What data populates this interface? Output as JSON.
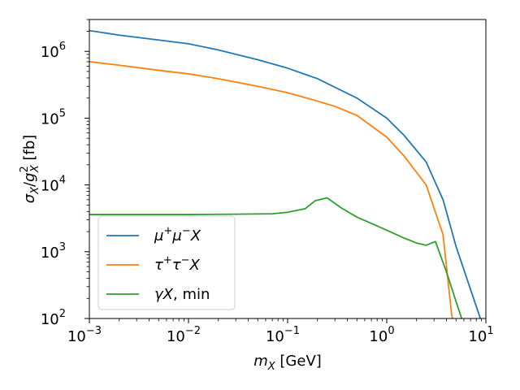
{
  "chart_data": {
    "type": "line",
    "title": "",
    "x_scale": "log",
    "y_scale": "log",
    "xlim": [
      0.001,
      10
    ],
    "ylim": [
      100,
      3000000
    ],
    "xlabel": {
      "main": "m",
      "sub": "X",
      "unit": " [GeV]"
    },
    "ylabel": {
      "sigma": "σ",
      "sigma_sub": "X",
      "slash": "/",
      "g": "g",
      "g_sub": "X",
      "g_sup": "2",
      "unit": " [fb]"
    },
    "x_ticks": [
      {
        "value": 0.001,
        "base": "10",
        "exp": "−3"
      },
      {
        "value": 0.01,
        "base": "10",
        "exp": "−2"
      },
      {
        "value": 0.1,
        "base": "10",
        "exp": "−1"
      },
      {
        "value": 1,
        "base": "10",
        "exp": "0"
      },
      {
        "value": 10,
        "base": "10",
        "exp": "1"
      }
    ],
    "y_ticks": [
      {
        "value": 100,
        "base": "10",
        "exp": "2"
      },
      {
        "value": 1000,
        "base": "10",
        "exp": "3"
      },
      {
        "value": 10000,
        "base": "10",
        "exp": "4"
      },
      {
        "value": 100000,
        "base": "10",
        "exp": "5"
      },
      {
        "value": 1000000,
        "base": "10",
        "exp": "6"
      }
    ],
    "legend_position": "lower-left",
    "series": [
      {
        "name": "μ⁺μ⁻X",
        "legend": [
          {
            "t": "μ"
          },
          {
            "t": "+",
            "sup": true
          },
          {
            "t": "μ"
          },
          {
            "t": "−",
            "sup": true
          },
          {
            "t": "X"
          }
        ],
        "color": "#1f77b4",
        "points": [
          [
            0.001,
            2050000
          ],
          [
            0.002,
            1750000
          ],
          [
            0.005,
            1480000
          ],
          [
            0.01,
            1300000
          ],
          [
            0.02,
            1050000
          ],
          [
            0.05,
            750000
          ],
          [
            0.1,
            560000
          ],
          [
            0.2,
            390000
          ],
          [
            0.3,
            290000
          ],
          [
            0.5,
            200000
          ],
          [
            1.0,
            100000
          ],
          [
            1.5,
            55000
          ],
          [
            2.5,
            22000
          ],
          [
            3.7,
            6000
          ],
          [
            5.0,
            1200
          ],
          [
            8.8,
            100
          ]
        ]
      },
      {
        "name": "τ⁺τ⁻X",
        "legend": [
          {
            "t": "τ"
          },
          {
            "t": "+",
            "sup": true
          },
          {
            "t": "τ"
          },
          {
            "t": "−",
            "sup": true
          },
          {
            "t": "X"
          }
        ],
        "color": "#ff7f0e",
        "points": [
          [
            0.001,
            700000
          ],
          [
            0.002,
            620000
          ],
          [
            0.005,
            520000
          ],
          [
            0.01,
            460000
          ],
          [
            0.02,
            390000
          ],
          [
            0.05,
            300000
          ],
          [
            0.1,
            240000
          ],
          [
            0.2,
            180000
          ],
          [
            0.3,
            150000
          ],
          [
            0.5,
            110000
          ],
          [
            1.0,
            52000
          ],
          [
            1.5,
            27000
          ],
          [
            2.5,
            10000
          ],
          [
            3.7,
            1800
          ],
          [
            4.5,
            120
          ],
          [
            4.6,
            100
          ]
        ]
      },
      {
        "name": "γX, min",
        "legend": [
          {
            "t": "γ"
          },
          {
            "t": "X"
          },
          {
            "t": ", min",
            "roman": true
          }
        ],
        "color": "#2ca02c",
        "points": [
          [
            0.001,
            3600
          ],
          [
            0.003,
            3600
          ],
          [
            0.01,
            3600
          ],
          [
            0.03,
            3650
          ],
          [
            0.07,
            3700
          ],
          [
            0.1,
            3900
          ],
          [
            0.15,
            4400
          ],
          [
            0.19,
            5800
          ],
          [
            0.25,
            6400
          ],
          [
            0.35,
            4500
          ],
          [
            0.5,
            3300
          ],
          [
            1.0,
            2100
          ],
          [
            1.5,
            1600
          ],
          [
            2.0,
            1350
          ],
          [
            2.5,
            1250
          ],
          [
            3.1,
            1420
          ],
          [
            4.0,
            500
          ],
          [
            5.0,
            180
          ],
          [
            5.7,
            100
          ]
        ]
      }
    ]
  }
}
